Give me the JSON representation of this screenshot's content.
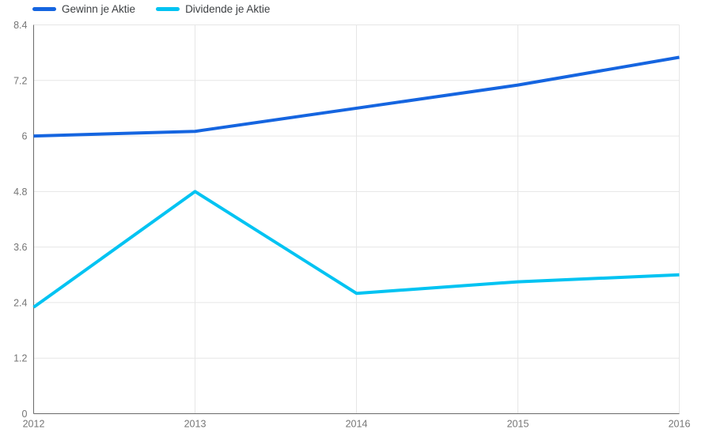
{
  "chart_data": {
    "type": "line",
    "title": "",
    "xlabel": "",
    "ylabel": "",
    "x": [
      2012,
      2013,
      2014,
      2015,
      2016
    ],
    "xtick_labels": [
      "2012",
      "2013",
      "2014",
      "2015",
      "2016"
    ],
    "ylim": [
      0,
      8.4
    ],
    "yticks": [
      0,
      1.2,
      2.4,
      3.6,
      4.8,
      6,
      7.2,
      8.4
    ],
    "ytick_labels": [
      "0",
      "1.2",
      "2.4",
      "3.6",
      "4.8",
      "6",
      "7.2",
      "8.4"
    ],
    "grid": true,
    "legend_position": "top-left",
    "series": [
      {
        "name": "Gewinn je Aktie",
        "color": "#1565e0",
        "values": [
          6.0,
          6.1,
          6.6,
          7.1,
          7.7
        ]
      },
      {
        "name": "Dividende je Aktie",
        "color": "#00c3f2",
        "values": [
          2.3,
          4.8,
          2.6,
          2.85,
          3.0
        ]
      }
    ]
  },
  "colors": {
    "background": "#ffffff",
    "grid": "#e6e6e6",
    "axis": "#6b6b6b",
    "tick_label": "#757575",
    "legend_label": "#3d4043"
  }
}
